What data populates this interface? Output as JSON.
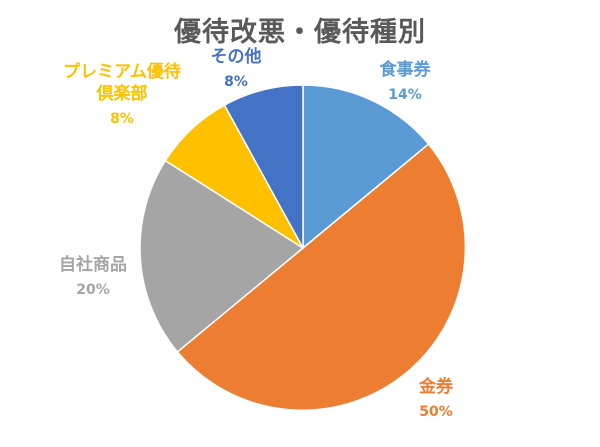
{
  "chart_data": {
    "type": "pie",
    "title": "優待改悪・優待種別",
    "start_angle_deg": 0,
    "direction": "clockwise",
    "slices": [
      {
        "label": "食事券",
        "label_lines": [
          "食事券"
        ],
        "value": 14,
        "pct_label": "14%",
        "color": "#5B9BD5",
        "label_color": "#5B9BD5"
      },
      {
        "label": "金券",
        "label_lines": [
          "金券"
        ],
        "value": 50,
        "pct_label": "50%",
        "color": "#ED7D31",
        "label_color": "#ED7D31"
      },
      {
        "label": "自社商品",
        "label_lines": [
          "自社商品"
        ],
        "value": 20,
        "pct_label": "20%",
        "color": "#A5A5A5",
        "label_color": "#A5A5A5"
      },
      {
        "label": "プレミアム優待倶楽部",
        "label_lines": [
          "プレミアム優待",
          "倶楽部"
        ],
        "value": 8,
        "pct_label": "8%",
        "color": "#FFC000",
        "label_color": "#FFC000"
      },
      {
        "label": "その他",
        "label_lines": [
          "その他"
        ],
        "value": 8,
        "pct_label": "8%",
        "color": "#4472C4",
        "label_color": "#4472C4"
      }
    ]
  }
}
